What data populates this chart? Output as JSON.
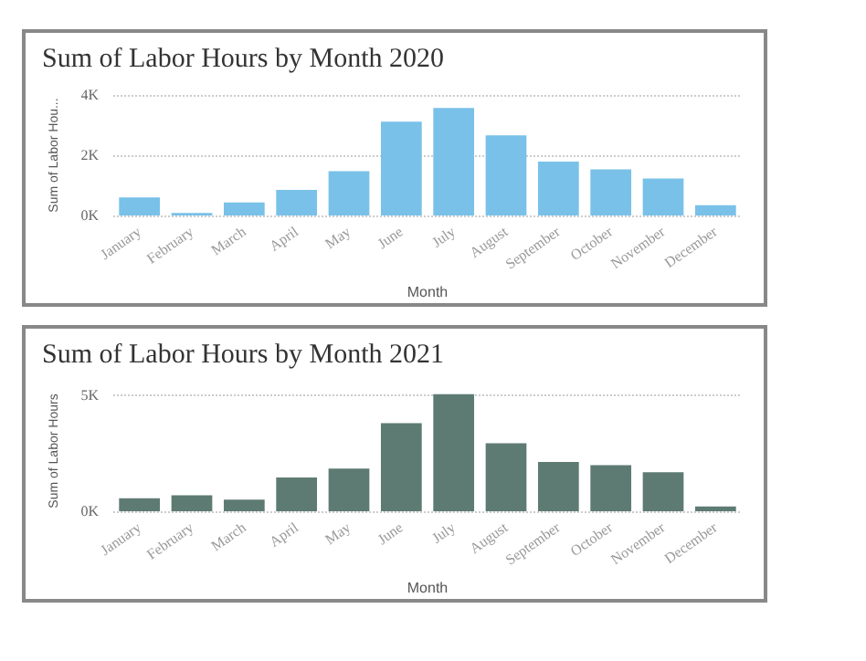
{
  "chart_data": [
    {
      "type": "bar",
      "title": "Sum of Labor Hours by Month 2020",
      "xlabel": "Month",
      "ylabel": "Sum of Labor Hou...",
      "categories": [
        "January",
        "February",
        "March",
        "April",
        "May",
        "June",
        "July",
        "August",
        "September",
        "October",
        "November",
        "December"
      ],
      "series": [
        {
          "color": "#79c1e8",
          "values": [
            600,
            80,
            430,
            850,
            1470,
            3110,
            3570,
            2660,
            1790,
            1530,
            1230,
            340
          ]
        }
      ],
      "ylim": [
        0,
        4000
      ],
      "yticks": [
        {
          "value": 0,
          "label": "0K"
        },
        {
          "value": 2000,
          "label": "2K"
        },
        {
          "value": 4000,
          "label": "4K"
        }
      ],
      "grid": "y"
    },
    {
      "type": "bar",
      "title": "Sum of Labor Hours by Month 2021",
      "xlabel": "Month",
      "ylabel": "Sum of Labor Hours",
      "categories": [
        "January",
        "February",
        "March",
        "April",
        "May",
        "June",
        "July",
        "August",
        "September",
        "October",
        "November",
        "December"
      ],
      "series": [
        {
          "color": "#5e7b73",
          "values": [
            560,
            690,
            500,
            1460,
            1840,
            3800,
            5050,
            2930,
            2130,
            1990,
            1680,
            210
          ]
        }
      ],
      "ylim": [
        0,
        5200
      ],
      "yticks": [
        {
          "value": 0,
          "label": "0K"
        },
        {
          "value": 5000,
          "label": "5K"
        }
      ],
      "grid": "y"
    }
  ]
}
